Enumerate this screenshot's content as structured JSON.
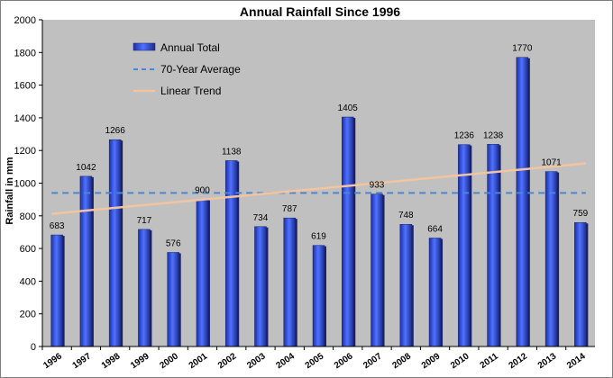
{
  "chart_data": {
    "type": "bar",
    "title": "Annual Rainfall Since 1996",
    "ylabel": "Rainfall in mm",
    "xlabel": "",
    "ylim": [
      0,
      2000
    ],
    "yticks": [
      0,
      200,
      400,
      600,
      800,
      1000,
      1200,
      1400,
      1600,
      1800,
      2000
    ],
    "grid": false,
    "legend_position": "top-left",
    "categories": [
      "1996",
      "1997",
      "1998",
      "1999",
      "2000",
      "2001",
      "2002",
      "2003",
      "2004",
      "2005",
      "2006",
      "2007",
      "2008",
      "2009",
      "2010",
      "2011",
      "2012",
      "2013",
      "2014"
    ],
    "series": [
      {
        "name": "Annual Total",
        "type": "bar",
        "values": [
          683,
          1042,
          1266,
          717,
          576,
          900,
          1138,
          734,
          787,
          619,
          1405,
          933,
          748,
          664,
          1236,
          1238,
          1770,
          1071,
          759
        ],
        "data_labels": [
          "683",
          "1042",
          "1266",
          "717",
          "576",
          "900",
          "1138",
          "734",
          "787",
          "619",
          "1405",
          "933",
          "748",
          "664",
          "1236",
          "1238",
          "1770",
          "1071",
          "759"
        ],
        "color": "#2f4fd6"
      },
      {
        "name": "70-Year Average",
        "type": "line",
        "style": "dashed",
        "value": 940,
        "color": "#4a86d8"
      },
      {
        "name": "Linear Trend",
        "type": "line",
        "style": "solid",
        "start_value": 812,
        "end_value": 1121,
        "color": "#f2c4a0"
      }
    ],
    "colors": {
      "plot_background": "#c0c0c0",
      "bar_fill": "#2f4fd6",
      "bar_shadow": "#1a2366",
      "average_line": "#4a86d8",
      "trend_line": "#f2c4a0"
    }
  }
}
